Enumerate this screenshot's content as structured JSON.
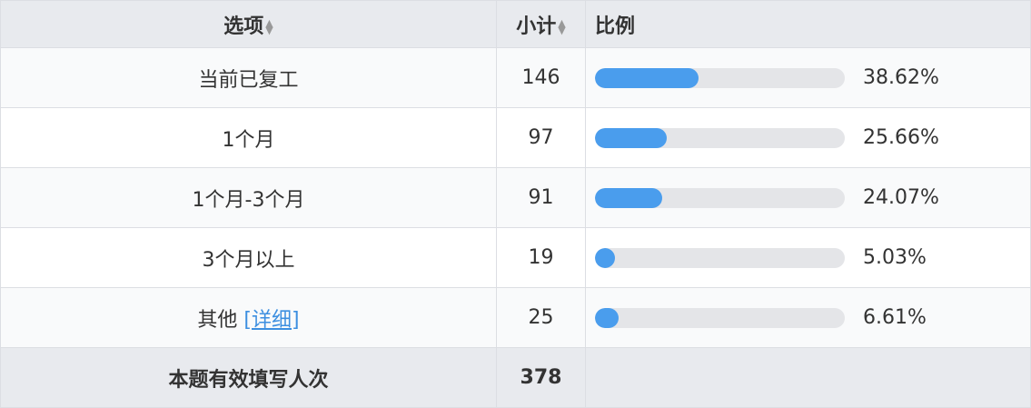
{
  "header": {
    "option": "选项",
    "count": "小计",
    "ratio": "比例",
    "sort_icon": "sort-icon"
  },
  "rows": [
    {
      "label": "当前已复工",
      "count": "146",
      "percent": "38.62%",
      "value": 38.62
    },
    {
      "label": "1个月",
      "count": "97",
      "percent": "25.66%",
      "value": 25.66
    },
    {
      "label": "1个月-3个月",
      "count": "91",
      "percent": "24.07%",
      "value": 24.07
    },
    {
      "label": "3个月以上",
      "count": "19",
      "percent": "5.03%",
      "value": 5.03
    },
    {
      "label": "其他",
      "link": "[详细]",
      "count": "25",
      "percent": "6.61%",
      "value": 6.61
    }
  ],
  "footer": {
    "label": "本题有效填写人次",
    "count": "378"
  },
  "colors": {
    "bar_fill": "#4a9ded",
    "bar_track": "#e4e5e8",
    "link": "#3d8fe0",
    "header_bg": "#e8eaee"
  }
}
